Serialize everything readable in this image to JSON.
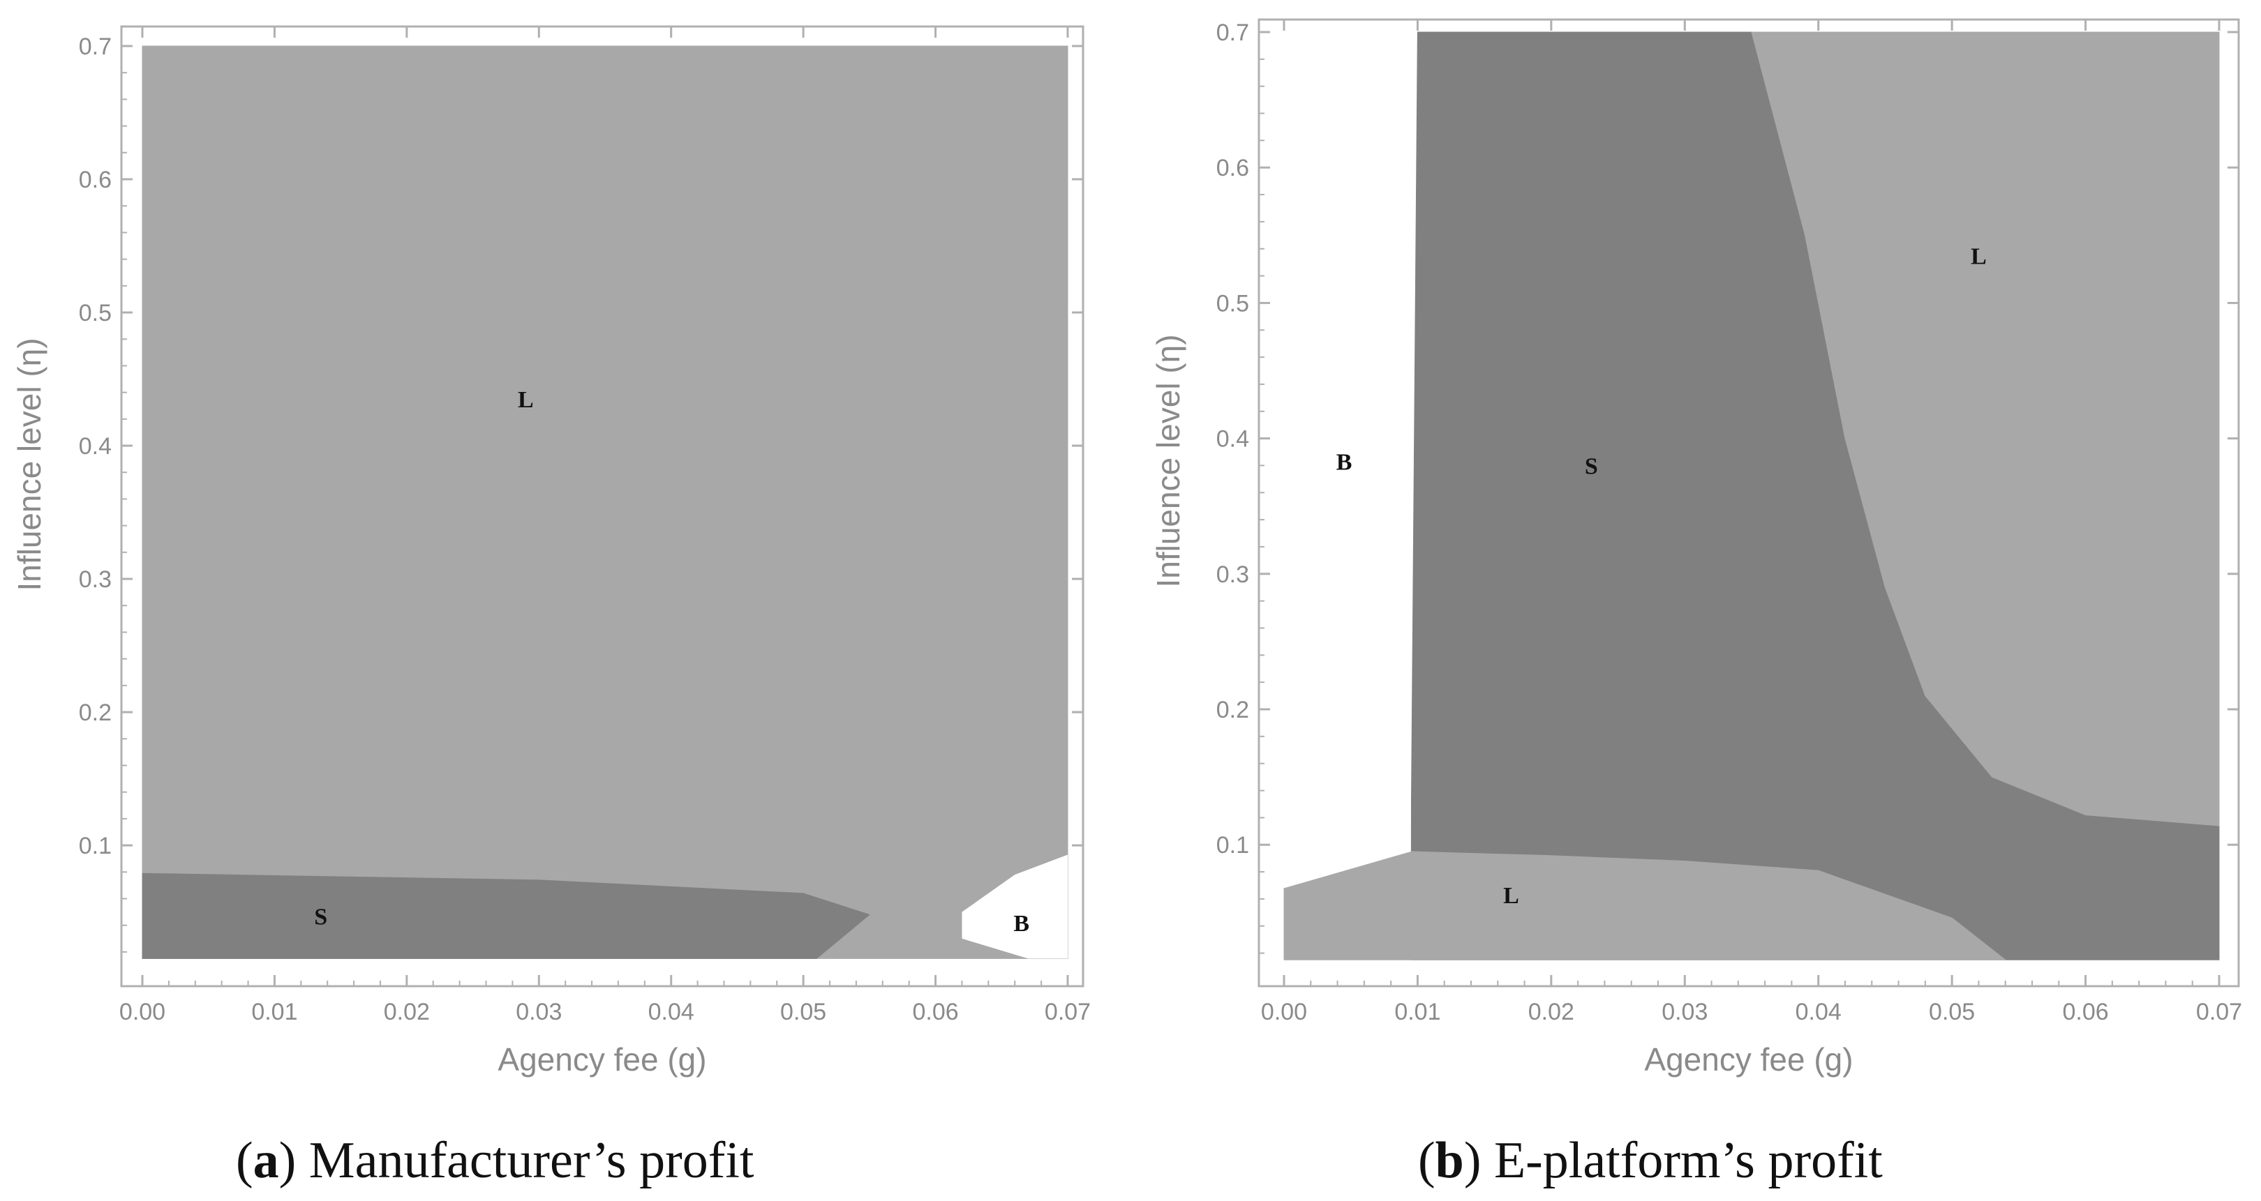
{
  "chart_data": [
    {
      "type": "region",
      "caption_letter": "a",
      "caption_text": ") Manufacturer’s profit",
      "xlabel": "Agency fee (g)",
      "ylabel": "Influence level (η)",
      "xlim": [
        0,
        0.07
      ],
      "ylim": [
        0.01,
        0.7
      ],
      "xticks": [
        "0.00",
        "0.01",
        "0.02",
        "0.03",
        "0.04",
        "0.05",
        "0.06",
        "0.07"
      ],
      "yticks": [
        "0.1",
        "0.2",
        "0.3",
        "0.4",
        "0.5",
        "0.6",
        "0.7"
      ],
      "region_labels": [
        {
          "text": "L",
          "x": 0.029,
          "y": 0.435
        },
        {
          "text": "S",
          "x": 0.0135,
          "y": 0.047
        },
        {
          "text": "B",
          "x": 0.0665,
          "y": 0.042
        }
      ],
      "regions": [
        {
          "name": "L",
          "color": "#a8a8a8",
          "points": [
            [
              0,
              0.015
            ],
            [
              0.07,
              0.015
            ],
            [
              0.07,
              0.7
            ],
            [
              0,
              0.7
            ]
          ]
        },
        {
          "name": "S",
          "color": "#808080",
          "points": [
            [
              0,
              0.015
            ],
            [
              0.051,
              0.015
            ],
            [
              0.055,
              0.048
            ],
            [
              0.05,
              0.064
            ],
            [
              0.03,
              0.074
            ],
            [
              0,
              0.079
            ]
          ]
        },
        {
          "name": "B",
          "color": "#ffffff",
          "points": [
            [
              0.067,
              0.015
            ],
            [
              0.062,
              0.03
            ],
            [
              0.062,
              0.05
            ],
            [
              0.066,
              0.078
            ],
            [
              0.07,
              0.093
            ],
            [
              0.07,
              0.015
            ]
          ]
        }
      ]
    },
    {
      "type": "region",
      "caption_letter": "b",
      "caption_text": ") E-platform’s profit",
      "xlabel": "Agency fee (g)",
      "ylabel": "Influence level (η)",
      "xlim": [
        0,
        0.07
      ],
      "ylim": [
        0.01,
        0.7
      ],
      "xticks": [
        "0.00",
        "0.01",
        "0.02",
        "0.03",
        "0.04",
        "0.05",
        "0.06",
        "0.07"
      ],
      "yticks": [
        "0.1",
        "0.2",
        "0.3",
        "0.4",
        "0.5",
        "0.6",
        "0.7"
      ],
      "region_labels": [
        {
          "text": "L",
          "x": 0.052,
          "y": 0.535
        },
        {
          "text": "B",
          "x": 0.0045,
          "y": 0.383
        },
        {
          "text": "S",
          "x": 0.023,
          "y": 0.38
        },
        {
          "text": "L",
          "x": 0.017,
          "y": 0.063
        }
      ],
      "regions": [
        {
          "name": "S",
          "color": "#808080",
          "points": [
            [
              0.0095,
              0.095
            ],
            [
              0.01,
              0.7
            ],
            [
              0.07,
              0.7
            ],
            [
              0.07,
              0.015
            ],
            [
              0.0095,
              0.015
            ]
          ]
        },
        {
          "name": "L",
          "color": "#a8a8a8",
          "points": [
            [
              0.035,
              0.7
            ],
            [
              0.07,
              0.7
            ],
            [
              0.07,
              0.114
            ],
            [
              0.06,
              0.122
            ],
            [
              0.053,
              0.15
            ],
            [
              0.048,
              0.21
            ],
            [
              0.045,
              0.29
            ],
            [
              0.042,
              0.4
            ],
            [
              0.039,
              0.55
            ]
          ]
        },
        {
          "name": "L",
          "color": "#a8a8a8",
          "points": [
            [
              0,
              0.015
            ],
            [
              0.054,
              0.015
            ],
            [
              0.05,
              0.046
            ],
            [
              0.04,
              0.081
            ],
            [
              0.03,
              0.088
            ],
            [
              0.02,
              0.092
            ],
            [
              0.0095,
              0.095
            ],
            [
              0,
              0.068
            ]
          ]
        },
        {
          "name": "B",
          "color": "#ffffff",
          "points": [
            [
              0,
              0.068
            ],
            [
              0.0095,
              0.095
            ],
            [
              0.0095,
              0.7
            ],
            [
              0,
              0.7
            ]
          ]
        }
      ]
    }
  ]
}
